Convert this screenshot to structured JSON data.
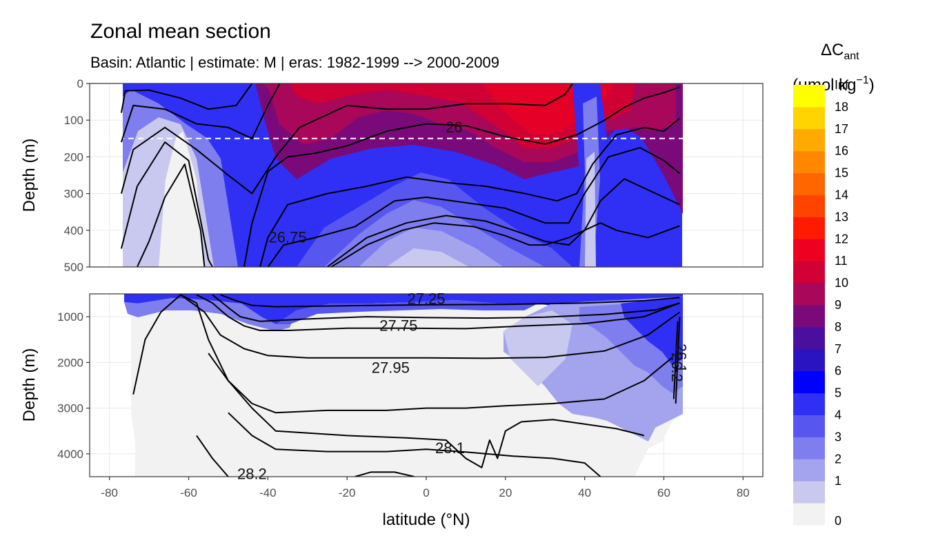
{
  "chart": {
    "title": "Zonal mean section",
    "subtitle": "Basin: Atlantic | estimate: M  | eras: 1982-1999 --> 2000-2009",
    "xlabel": "latitude (°N)",
    "ylabel_top": "Depth (m)",
    "ylabel_bottom": "Depth (m)",
    "legend_title_main": "ΔC",
    "legend_title_sub": "ant",
    "legend_unit_open": "(μmol kg",
    "legend_unit_sup": "−1",
    "legend_unit_close": ")"
  },
  "chart_data": {
    "type": "heatmap",
    "x_label": "latitude (°N)",
    "x_ticks": [
      -80,
      -60,
      -40,
      -20,
      0,
      20,
      40,
      60,
      80
    ],
    "xlim": [
      -85,
      85
    ],
    "panels": [
      {
        "name": "upper",
        "ylim": [
          0,
          500
        ],
        "y_ticks": [
          0,
          100,
          200,
          300,
          400,
          500
        ],
        "reference_line_depth": 150
      },
      {
        "name": "lower",
        "ylim": [
          500,
          4500
        ],
        "y_ticks": [
          1000,
          2000,
          3000,
          4000
        ]
      }
    ],
    "color_scale": {
      "breaks": [
        "0",
        "1",
        "2",
        "3",
        "4",
        "5",
        "6",
        "7",
        "8",
        "9",
        "10",
        "11",
        "12",
        "13",
        "14",
        "15",
        "16",
        "17",
        "18",
        "Inf"
      ],
      "colors": [
        "#f2f2f2",
        "#c9c9f0",
        "#a3a3ee",
        "#7e7eee",
        "#5757f0",
        "#3030f5",
        "#0000ff",
        "#2a14c2",
        "#4a0f9c",
        "#7a0a7a",
        "#a8075a",
        "#d00035",
        "#ee0022",
        "#ff1a00",
        "#ff4400",
        "#ff6600",
        "#ff8800",
        "#ffaa00",
        "#ffd400",
        "#ffff00"
      ]
    },
    "contour_labels": [
      {
        "text": "26",
        "lat": 7,
        "depth": 120
      },
      {
        "text": "26.75",
        "lat": -35,
        "depth": 420
      },
      {
        "text": "27.25",
        "lat": 0,
        "depth": 610
      },
      {
        "text": "27.75",
        "lat": -7,
        "depth": 1200
      },
      {
        "text": "27.95",
        "lat": -9,
        "depth": 2120
      },
      {
        "text": "28.1",
        "lat": 6,
        "depth": 3880
      },
      {
        "text": "28.2",
        "lat": -44,
        "depth": 4450
      },
      {
        "text": "26.2",
        "lat": 62,
        "depth": 2000
      },
      {
        "text": "26.1",
        "lat": 63,
        "depth": 1800
      }
    ],
    "contours_upper": [
      [
        [
          -77,
          80
        ],
        [
          -76,
          20
        ],
        [
          -70,
          18
        ],
        [
          -62,
          40
        ],
        [
          -55,
          70
        ],
        [
          -48,
          60
        ],
        [
          -44,
          0
        ]
      ],
      [
        [
          -77,
          160
        ],
        [
          -74,
          60
        ],
        [
          -66,
          70
        ],
        [
          -58,
          110
        ],
        [
          -50,
          120
        ],
        [
          -44,
          150
        ],
        [
          -40,
          60
        ],
        [
          -37,
          0
        ]
      ],
      [
        [
          -77,
          300
        ],
        [
          -74,
          180
        ],
        [
          -66,
          120
        ],
        [
          -58,
          180
        ],
        [
          -50,
          250
        ],
        [
          -44,
          300
        ],
        [
          -38,
          200
        ],
        [
          -32,
          120
        ],
        [
          -20,
          60
        ],
        [
          -10,
          70
        ],
        [
          0,
          70
        ],
        [
          10,
          55
        ],
        [
          20,
          55
        ],
        [
          30,
          60
        ],
        [
          35,
          30
        ],
        [
          37,
          0
        ]
      ],
      [
        [
          -77,
          450
        ],
        [
          -73,
          280
        ],
        [
          -66,
          160
        ],
        [
          -60,
          210
        ],
        [
          -55,
          480
        ],
        [
          -54,
          500
        ]
      ],
      [
        [
          -73,
          500
        ],
        [
          -70,
          430
        ],
        [
          -66,
          310
        ],
        [
          -61,
          220
        ],
        [
          -57,
          400
        ],
        [
          -56,
          500
        ]
      ],
      [
        [
          -46,
          500
        ],
        [
          -44,
          380
        ],
        [
          -40,
          240
        ],
        [
          -35,
          200
        ],
        [
          -28,
          190
        ],
        [
          -20,
          170
        ],
        [
          -10,
          130
        ],
        [
          0,
          110
        ],
        [
          10,
          115
        ],
        [
          20,
          145
        ],
        [
          30,
          165
        ],
        [
          38,
          140
        ],
        [
          45,
          100
        ],
        [
          50,
          65
        ],
        [
          55,
          40
        ],
        [
          60,
          25
        ],
        [
          64,
          10
        ]
      ],
      [
        [
          -42,
          500
        ],
        [
          -40,
          420
        ],
        [
          -35,
          330
        ],
        [
          -25,
          300
        ],
        [
          -15,
          280
        ],
        [
          -5,
          255
        ],
        [
          5,
          270
        ],
        [
          15,
          280
        ],
        [
          25,
          300
        ],
        [
          33,
          320
        ],
        [
          38,
          300
        ],
        [
          42,
          220
        ],
        [
          48,
          140
        ],
        [
          55,
          120
        ],
        [
          60,
          130
        ],
        [
          64,
          95
        ]
      ],
      [
        [
          -40,
          500
        ],
        [
          -36,
          440
        ],
        [
          -28,
          420
        ],
        [
          -18,
          390
        ],
        [
          -8,
          320
        ],
        [
          0,
          310
        ],
        [
          10,
          325
        ],
        [
          20,
          340
        ],
        [
          30,
          380
        ],
        [
          36,
          380
        ],
        [
          40,
          300
        ],
        [
          46,
          200
        ],
        [
          54,
          175
        ],
        [
          60,
          210
        ],
        [
          64,
          245
        ]
      ],
      [
        [
          -25,
          500
        ],
        [
          -15,
          420
        ],
        [
          -5,
          380
        ],
        [
          5,
          360
        ],
        [
          15,
          375
        ],
        [
          22,
          400
        ],
        [
          30,
          430
        ],
        [
          36,
          440
        ],
        [
          40,
          400
        ],
        [
          44,
          320
        ],
        [
          50,
          260
        ],
        [
          58,
          300
        ],
        [
          64,
          330
        ]
      ],
      [
        [
          -24,
          500
        ],
        [
          -15,
          440
        ],
        [
          -6,
          400
        ],
        [
          2,
          380
        ],
        [
          12,
          390
        ],
        [
          20,
          415
        ],
        [
          26,
          440
        ],
        [
          30,
          440
        ],
        [
          36,
          420
        ],
        [
          40,
          400
        ],
        [
          44,
          380
        ],
        [
          48,
          400
        ],
        [
          56,
          420
        ],
        [
          64,
          388
        ]
      ]
    ],
    "contours_lower": [
      [
        [
          -74,
          2700
        ],
        [
          -71,
          1500
        ],
        [
          -67,
          900
        ],
        [
          -62,
          520
        ],
        [
          -58,
          700
        ],
        [
          -55,
          1500
        ],
        [
          -50,
          2400
        ],
        [
          -44,
          3000
        ],
        [
          -38,
          3500
        ],
        [
          -20,
          3600
        ],
        [
          -5,
          3650
        ],
        [
          5,
          3700
        ],
        [
          10,
          4100
        ],
        [
          14,
          4300
        ],
        [
          16,
          3700
        ],
        [
          18,
          4100
        ],
        [
          20,
          3500
        ],
        [
          24,
          3300
        ],
        [
          32,
          3250
        ],
        [
          40,
          3350
        ],
        [
          48,
          3450
        ],
        [
          55,
          3600
        ]
      ],
      [
        [
          -58,
          520
        ],
        [
          -54,
          700
        ],
        [
          -50,
          1000
        ],
        [
          -46,
          1200
        ],
        [
          -42,
          1300
        ],
        [
          -35,
          1300
        ],
        [
          -20,
          1250
        ],
        [
          -5,
          1250
        ],
        [
          10,
          1260
        ],
        [
          25,
          1200
        ],
        [
          40,
          1150
        ],
        [
          55,
          1000
        ],
        [
          64,
          700
        ]
      ],
      [
        [
          -62,
          520
        ],
        [
          -56,
          900
        ],
        [
          -52,
          1400
        ],
        [
          -46,
          1700
        ],
        [
          -40,
          1850
        ],
        [
          -30,
          1900
        ],
        [
          -15,
          1900
        ],
        [
          0,
          1900
        ],
        [
          15,
          1910
        ],
        [
          30,
          1890
        ],
        [
          45,
          1750
        ],
        [
          56,
          1400
        ],
        [
          64,
          900
        ]
      ],
      [
        [
          -54,
          520
        ],
        [
          -50,
          800
        ],
        [
          -47,
          1000
        ],
        [
          -42,
          1100
        ],
        [
          -30,
          1050
        ],
        [
          -15,
          1000
        ],
        [
          0,
          1020
        ],
        [
          15,
          1030
        ],
        [
          30,
          1010
        ],
        [
          45,
          950
        ],
        [
          58,
          850
        ],
        [
          64,
          700
        ]
      ],
      [
        [
          -55,
          1800
        ],
        [
          -50,
          2400
        ],
        [
          -44,
          2900
        ],
        [
          -38,
          3100
        ],
        [
          -25,
          3050
        ],
        [
          -10,
          3050
        ],
        [
          0,
          3000
        ],
        [
          10,
          3000
        ],
        [
          20,
          2950
        ],
        [
          32,
          2900
        ],
        [
          45,
          2800
        ],
        [
          55,
          2400
        ],
        [
          62,
          1900
        ]
      ],
      [
        [
          -50,
          3100
        ],
        [
          -44,
          3600
        ],
        [
          -38,
          3900
        ],
        [
          -25,
          3950
        ],
        [
          -10,
          3950
        ],
        [
          0,
          3900
        ],
        [
          10,
          3960
        ],
        [
          22,
          4050
        ],
        [
          32,
          4100
        ],
        [
          40,
          4200
        ],
        [
          44,
          4500
        ]
      ],
      [
        [
          -52,
          520
        ],
        [
          -48,
          650
        ],
        [
          -44,
          750
        ],
        [
          -38,
          780
        ],
        [
          -20,
          760
        ],
        [
          0,
          740
        ],
        [
          20,
          730
        ],
        [
          40,
          700
        ],
        [
          55,
          650
        ],
        [
          64,
          580
        ]
      ],
      [
        [
          -58,
          3600
        ],
        [
          -54,
          4100
        ],
        [
          -50,
          4500
        ]
      ],
      [
        [
          -18,
          4500
        ],
        [
          -14,
          4400
        ],
        [
          -8,
          4400
        ],
        [
          -3,
          4500
        ]
      ],
      [
        [
          63,
          2900
        ],
        [
          64,
          1000
        ]
      ],
      [
        [
          62.5,
          2800
        ],
        [
          63.5,
          1100
        ]
      ]
    ]
  }
}
